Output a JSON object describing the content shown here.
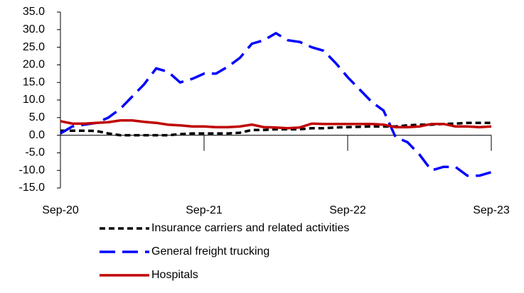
{
  "chart_data": {
    "type": "line",
    "categories": [
      "Sep-20",
      null,
      null,
      null,
      null,
      null,
      null,
      null,
      null,
      null,
      null,
      null,
      "Sep-21",
      null,
      null,
      null,
      null,
      null,
      null,
      null,
      null,
      null,
      null,
      null,
      "Sep-22",
      null,
      null,
      null,
      null,
      null,
      null,
      null,
      null,
      null,
      null,
      null,
      "Sep-23"
    ],
    "series": [
      {
        "name": "Insurance carriers and related activities",
        "color": "#000000",
        "dash": "8,5",
        "values": [
          1.3,
          1.3,
          1.3,
          1.2,
          0.5,
          0,
          0,
          0,
          0,
          0,
          0.3,
          0.5,
          0.5,
          0.5,
          0.5,
          0.7,
          1.5,
          1.5,
          1.7,
          1.7,
          1.7,
          2,
          2,
          2.2,
          2.3,
          2.4,
          2.5,
          2.5,
          2.5,
          2.8,
          3,
          3,
          3.2,
          3.3,
          3.5,
          3.5,
          3.5
        ]
      },
      {
        "name": "General freight trucking",
        "color": "#0000ff",
        "dash": "22,10",
        "values": [
          0.5,
          2.5,
          3,
          3.5,
          5,
          7.5,
          11,
          14.5,
          19,
          18,
          15,
          16,
          17.5,
          17.5,
          19.5,
          22,
          26,
          27,
          29,
          27,
          26.5,
          25,
          24,
          20.5,
          16.5,
          13,
          9.5,
          7,
          -0.5,
          -2,
          -5.5,
          -10,
          -9,
          -9,
          -11.5,
          -11.5,
          -10.5
        ]
      },
      {
        "name": "Hospitals",
        "color": "#c00000",
        "dash": "",
        "values": [
          4,
          3.3,
          3.3,
          3.5,
          3.7,
          4.2,
          4.2,
          3.8,
          3.5,
          3,
          2.8,
          2.5,
          2.5,
          2.3,
          2.3,
          2.5,
          3,
          2.3,
          2.2,
          2,
          2.2,
          3.3,
          3.2,
          3.2,
          3.2,
          3.2,
          3.2,
          3,
          2.3,
          2.3,
          2.5,
          3.2,
          3.2,
          2.5,
          2.5,
          2.3,
          2.5
        ]
      }
    ],
    "ylim": [
      -15,
      35
    ],
    "yticks": [
      {
        "value": -15,
        "label": "-15.0"
      },
      {
        "value": -10,
        "label": "-10.0"
      },
      {
        "value": -5,
        "label": "-5.0"
      },
      {
        "value": 0,
        "label": "0.0"
      },
      {
        "value": 5,
        "label": "5.0"
      },
      {
        "value": 10,
        "label": "10.0"
      },
      {
        "value": 15,
        "label": "15.0"
      },
      {
        "value": 20,
        "label": "20.0"
      },
      {
        "value": 25,
        "label": "25.0"
      },
      {
        "value": 30,
        "label": "30.0"
      },
      {
        "value": 35,
        "label": "35.0"
      }
    ],
    "legend": "bottom"
  }
}
